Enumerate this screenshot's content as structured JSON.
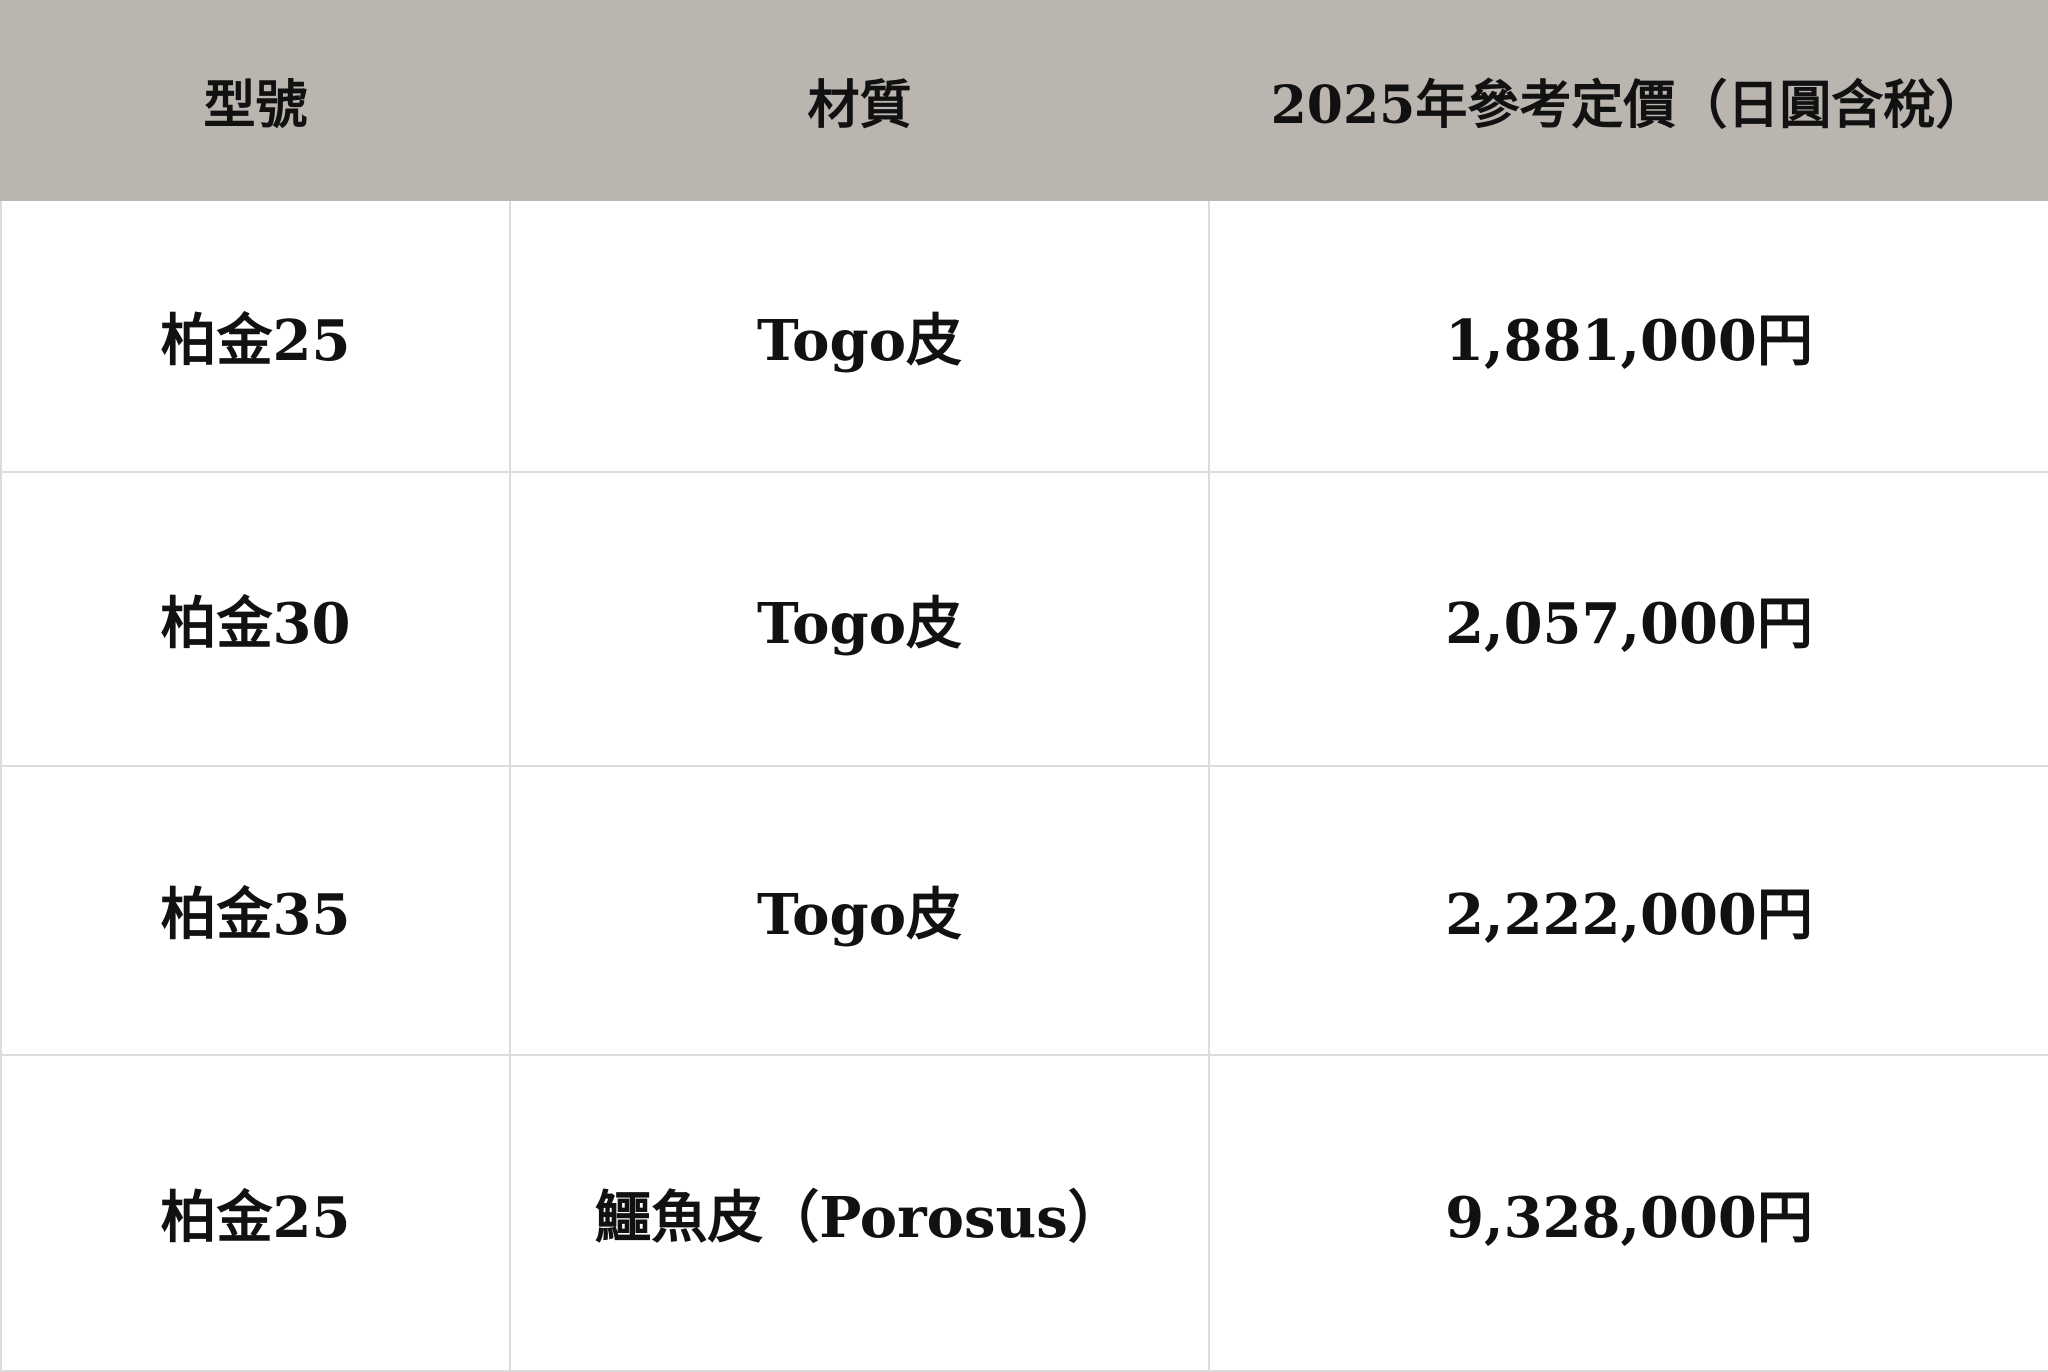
{
  "table": {
    "headers": [
      "型號",
      "材質",
      "2025年參考定價（日圓含稅）"
    ],
    "rows": [
      [
        "柏金25",
        "Togo皮",
        "1,881,000円"
      ],
      [
        "柏金30",
        "Togo皮",
        "2,057,000円"
      ],
      [
        "柏金35",
        "Togo皮",
        "2,222,000円"
      ],
      [
        "柏金25",
        "鱷魚皮（Porosus）",
        "9,328,000円"
      ]
    ],
    "colors": {
      "header_bg": "#bab5af",
      "border": "#dcdcdc"
    }
  }
}
